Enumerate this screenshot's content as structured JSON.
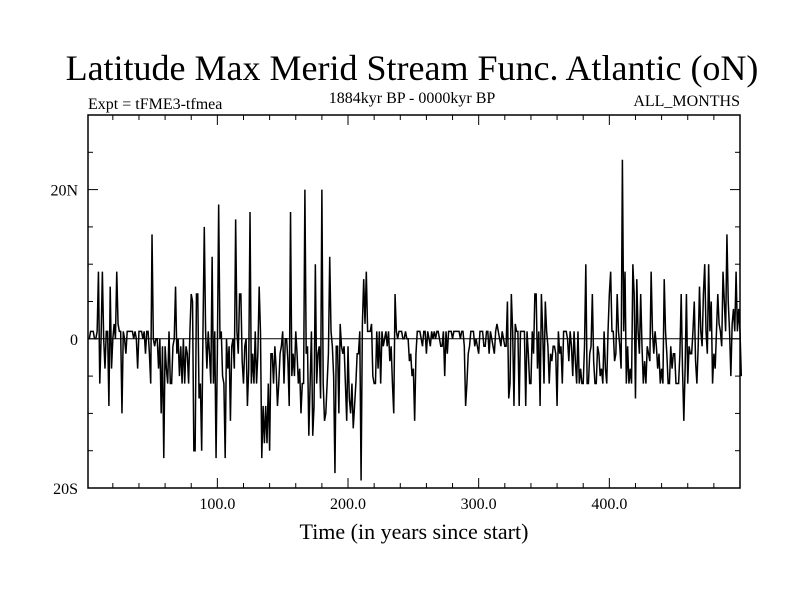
{
  "chart_data": {
    "type": "line",
    "title": "Latitude Max Merid Stream Func. Atlantic (oN)",
    "subtitle_left": "Expt = tFME3-tfmea",
    "subtitle_center": "1884kyr BP - 0000kyr BP",
    "subtitle_right": "ALL_MONTHS",
    "xlabel": "Time (in years since start)",
    "ylabel": "",
    "xlim": [
      1,
      500
    ],
    "ylim": [
      -20,
      30
    ],
    "x_ticks": [
      100,
      200,
      300,
      400
    ],
    "x_tick_labels": [
      "100.0",
      "200.0",
      "300.0",
      "400.0"
    ],
    "y_ticks": [
      20,
      0,
      -20
    ],
    "y_tick_labels": [
      "20N",
      "0",
      "20S"
    ],
    "grid": false,
    "legend": "none",
    "line_color": "#000000",
    "series": [
      {
        "x_start": 1,
        "x_step": 1,
        "values": [
          0,
          0,
          1,
          1,
          1,
          0,
          0,
          1,
          9,
          -6,
          0,
          9,
          0,
          -4,
          1,
          1,
          -9,
          7,
          -4,
          0,
          2,
          0,
          9,
          2,
          1,
          1,
          -10,
          1,
          0,
          -2,
          1,
          1,
          1,
          1,
          1,
          0,
          1,
          0,
          -4,
          1,
          1,
          1,
          0,
          1,
          -2,
          1,
          1,
          -2,
          -6,
          14,
          0,
          -1,
          0,
          0,
          -4,
          0,
          -10,
          -1,
          -16,
          -1,
          -4,
          -6,
          1,
          -6,
          -6,
          -1,
          0,
          7,
          -2,
          0,
          -5,
          -1,
          -6,
          0,
          -6,
          -1,
          -2,
          -6,
          1,
          6,
          5,
          -15,
          -15,
          6,
          6,
          -8,
          -6,
          -15,
          1,
          15,
          1,
          -4,
          1,
          -2,
          -6,
          11,
          -6,
          1,
          -16,
          -2,
          18,
          0,
          1,
          -5,
          -6,
          -16,
          0,
          -4,
          -1,
          -11,
          -1,
          0,
          -4,
          16,
          1,
          -2,
          6,
          6,
          -3,
          -6,
          -1,
          0,
          -9,
          -4,
          17,
          -6,
          -2,
          -6,
          1,
          -6,
          -2,
          7,
          1,
          -16,
          -9,
          -14,
          -9,
          -14,
          -6,
          -15,
          -2,
          -2,
          -6,
          -1,
          -4,
          -9,
          -6,
          -2,
          -1,
          1,
          -6,
          0,
          0,
          -3,
          -9,
          17,
          -5,
          -2,
          -5,
          1,
          -2,
          -6,
          -4,
          -10,
          -6,
          -6,
          20,
          -2,
          -1,
          -13,
          -6,
          1,
          -13,
          -9,
          10,
          -6,
          -2,
          -1,
          -8,
          -9,
          -6,
          -11,
          -10,
          -6,
          -2,
          11,
          1,
          -1,
          -5,
          -18,
          -1,
          -1,
          -10,
          2,
          -1,
          -2,
          -1,
          -6,
          -11,
          -1,
          -8,
          -10,
          -6,
          -12,
          -9,
          -6,
          -2,
          -2,
          1,
          -3,
          2,
          8,
          2,
          9,
          1,
          1,
          1,
          2,
          -5,
          -6,
          -6,
          1,
          -4,
          1,
          -6,
          1,
          -1,
          0,
          1,
          -1,
          1,
          -3,
          -1,
          -6,
          -10,
          6,
          1,
          0,
          1,
          1,
          1,
          0,
          0,
          1,
          0,
          0,
          -3,
          -2,
          -5,
          -4,
          -11,
          -2,
          1,
          1,
          1,
          0,
          -1,
          1,
          1,
          -2,
          1,
          0,
          -1,
          1,
          0,
          1,
          0,
          1,
          1,
          0,
          -1,
          -1,
          1,
          -5,
          1,
          -2,
          1,
          1,
          1,
          0,
          1,
          1,
          1,
          1,
          1,
          0,
          1,
          1,
          -1,
          -9,
          -6,
          -2,
          -1,
          1,
          1,
          1,
          -1,
          0,
          -1,
          -2,
          1,
          1,
          1,
          -1,
          -1,
          1,
          1,
          -2,
          1,
          0,
          -1,
          -2,
          1,
          2,
          1,
          0,
          -1,
          1,
          0,
          -1,
          -1,
          5,
          -8,
          -6,
          6,
          1,
          -9,
          2,
          1,
          1,
          -9,
          1,
          1,
          1,
          1,
          -9,
          1,
          -2,
          -6,
          -6,
          1,
          -2,
          6,
          6,
          -4,
          1,
          -9,
          6,
          1,
          -6,
          5,
          1,
          -1,
          -6,
          -2,
          -3,
          -1,
          -1,
          -2,
          -9,
          1,
          -2,
          -1,
          -6,
          1,
          1,
          1,
          0,
          -3,
          1,
          -1,
          -5,
          1,
          -3,
          -6,
          1,
          -6,
          -4,
          -6,
          -6,
          -1,
          10,
          -6,
          -6,
          -2,
          -1,
          6,
          -3,
          -6,
          -6,
          -1,
          -2,
          -5,
          -4,
          -6,
          1,
          -4,
          -6,
          1,
          6,
          9,
          1,
          1,
          -3,
          -2,
          6,
          1,
          -1,
          -4,
          -1,
          1,
          9,
          -6,
          -1,
          -6,
          -4,
          -6,
          10,
          6,
          -8,
          8,
          1,
          -2,
          6,
          -1,
          -6,
          -3,
          -6,
          -1,
          -2,
          -3,
          9,
          1,
          -2,
          1,
          -1,
          -4,
          -2,
          -6,
          -4,
          -6,
          8,
          1,
          -2,
          -6,
          -6,
          -1,
          -4,
          -2,
          -2,
          -6,
          -6,
          -6,
          -2,
          6,
          -4,
          -11,
          -4,
          6,
          -6,
          -1,
          -2,
          -2,
          1,
          5,
          -3,
          -6,
          -1,
          7,
          1,
          -1,
          6,
          10,
          1,
          -2,
          10,
          1,
          5,
          -6,
          -2,
          -4,
          1,
          6,
          2,
          1,
          -1,
          9,
          5,
          1,
          14,
          5,
          1,
          -5,
          2,
          4,
          1,
          9,
          1,
          4,
          1,
          -5
        ]
      },
      {
        "x": [
          410,
          180,
          210
        ],
        "values": [
          24,
          20,
          -19
        ]
      }
    ]
  }
}
